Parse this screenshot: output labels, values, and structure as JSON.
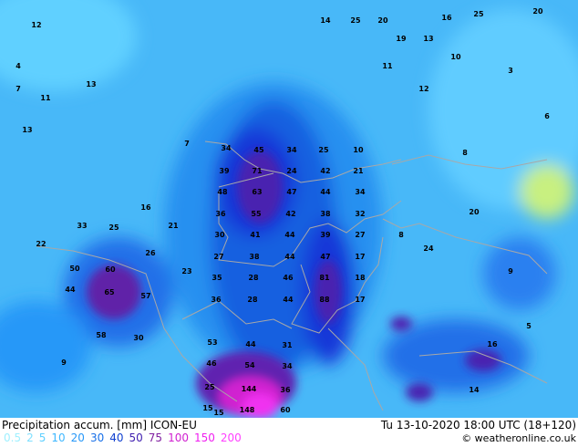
{
  "header": {
    "title": "Precipitation accum. [mm] ICON-EU",
    "datetime": "Tu 13-10-2020 18:00 UTC (18+120)",
    "copyright": "© weatheronline.co.uk"
  },
  "legend": [
    {
      "value": "0.5",
      "color": "#a0f0ff"
    },
    {
      "value": "2",
      "color": "#80e0ff"
    },
    {
      "value": "5",
      "color": "#60d0ff"
    },
    {
      "value": "10",
      "color": "#40b8ff"
    },
    {
      "value": "20",
      "color": "#2898f8"
    },
    {
      "value": "30",
      "color": "#1870e8"
    },
    {
      "value": "40",
      "color": "#1040d0"
    },
    {
      "value": "50",
      "color": "#4020b0"
    },
    {
      "value": "75",
      "color": "#8020a0"
    },
    {
      "value": "100",
      "color": "#d020d0"
    },
    {
      "value": "150",
      "color": "#f020f0"
    },
    {
      "value": "200",
      "color": "#ff40ff"
    }
  ],
  "map_values": [
    "34",
    "45",
    "34",
    "25",
    "10",
    "39",
    "71",
    "24",
    "42",
    "21",
    "48",
    "63",
    "47",
    "44",
    "34",
    "36",
    "55",
    "42",
    "38",
    "32",
    "30",
    "41",
    "44",
    "39",
    "27",
    "27",
    "38",
    "44",
    "47",
    "17",
    "35",
    "28",
    "46",
    "81",
    "18",
    "36",
    "28",
    "44",
    "88",
    "17",
    "53",
    "44",
    "31",
    "54",
    "34",
    "46",
    "144",
    "36",
    "25",
    "15",
    "148",
    "60",
    "60",
    "44",
    "50",
    "65",
    "57",
    "58",
    "30",
    "14",
    "25",
    "20",
    "16",
    "25",
    "20",
    "12",
    "13",
    "24",
    "11",
    "9",
    "8",
    "7",
    "5",
    "3",
    "4",
    "13",
    "22",
    "16",
    "15",
    "10",
    "12",
    "7",
    "6",
    "9",
    "33",
    "25",
    "26",
    "21",
    "19",
    "23",
    "20",
    "16",
    "14",
    "13",
    "11",
    "8"
  ]
}
